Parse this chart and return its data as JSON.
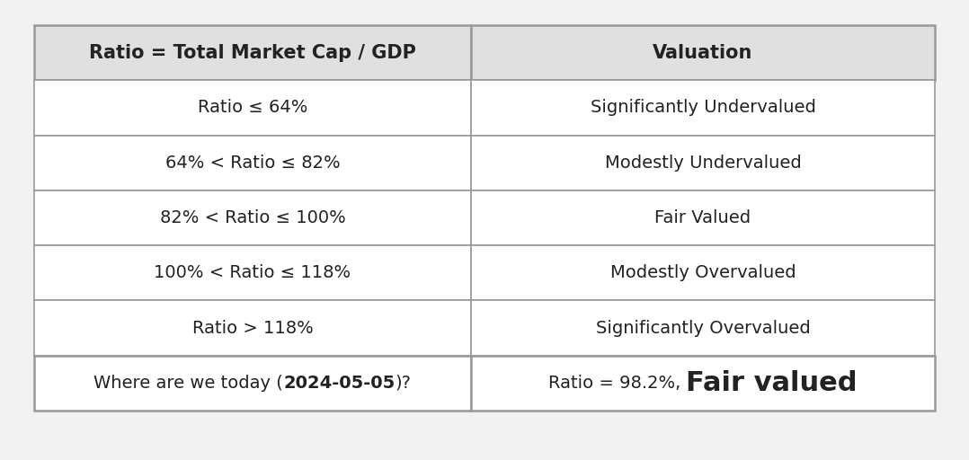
{
  "header": [
    "Ratio = Total Market Cap / GDP",
    "Valuation"
  ],
  "rows": [
    [
      "Ratio ≤ 64%",
      "Significantly Undervalued"
    ],
    [
      "64% < Ratio ≤ 82%",
      "Modestly Undervalued"
    ],
    [
      "82% < Ratio ≤ 100%",
      "Fair Valued"
    ],
    [
      "100% < Ratio ≤ 118%",
      "Modestly Overvalued"
    ],
    [
      "Ratio > 118%",
      "Significantly Overvalued"
    ]
  ],
  "footer_left_normal1": "Where are we today (",
  "footer_left_bold": "2024-05-05",
  "footer_left_normal2": ")?",
  "footer_right_normal": "Ratio = 98.2%, ",
  "footer_right_bold": "Fair valued",
  "bg_color": "#f2f2f2",
  "header_bg": "#e0e0e0",
  "cell_bg": "#ffffff",
  "border_color": "#999999",
  "text_color": "#222222",
  "header_fontsize": 15,
  "row_fontsize": 14,
  "footer_fontsize": 14,
  "footer_bold_large_fontsize": 22,
  "col_split": 0.485
}
